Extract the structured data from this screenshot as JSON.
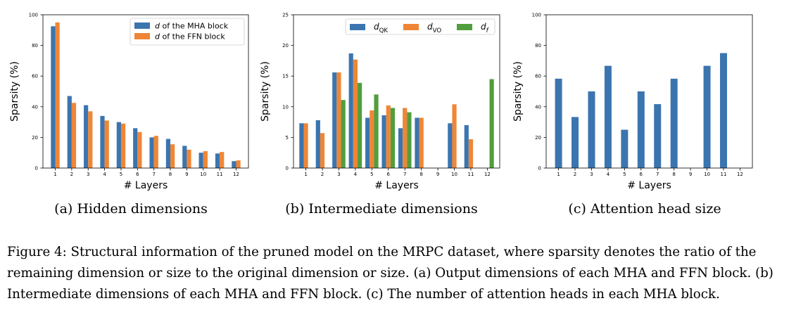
{
  "colors": {
    "blue": "#3b75af",
    "orange": "#ef8636",
    "green": "#519e3e"
  },
  "captions": {
    "a": "(a)  Hidden dimensions",
    "b": "(b)  Intermediate dimensions",
    "c": "(c)  Attention head size",
    "figure": "Figure 4:  Structural information of the pruned model on the MRPC dataset, where sparsity denotes the ratio of the remaining dimension or size to the original dimension or size. (a) Output dimensions of each MHA and FFN block. (b) Intermediate dimensions of each MHA and FFN block. (c) The number of attention heads in each MHA block."
  },
  "chart_data": [
    {
      "id": "a",
      "type": "bar",
      "xlabel": "# Layers",
      "ylabel": "Sparsity (%)",
      "ylim": [
        0,
        100
      ],
      "yticks": [
        0,
        20,
        40,
        60,
        80,
        100
      ],
      "categories": [
        "1",
        "2",
        "3",
        "4",
        "5",
        "6",
        "7",
        "8",
        "9",
        "10",
        "11",
        "12"
      ],
      "legend": "top-right",
      "grid": false,
      "series": [
        {
          "name": "d of the MHA block",
          "color": "blue",
          "values": [
            92.5,
            47,
            41,
            34,
            30,
            26,
            20,
            19,
            14.5,
            10,
            9.5,
            4.5
          ]
        },
        {
          "name": "d of the FFN block",
          "color": "orange",
          "values": [
            95,
            42.5,
            37,
            31,
            29,
            23.5,
            21,
            15.5,
            12,
            11,
            10.5,
            5
          ]
        }
      ]
    },
    {
      "id": "b",
      "type": "bar",
      "xlabel": "# Layers",
      "ylabel": "Sparsity (%)",
      "ylim": [
        0,
        25
      ],
      "yticks": [
        0,
        5,
        10,
        15,
        20,
        25
      ],
      "categories": [
        "1",
        "2",
        "3",
        "4",
        "5",
        "6",
        "7",
        "8",
        "9",
        "10",
        "11",
        "12"
      ],
      "legend": "top",
      "grid": false,
      "series": [
        {
          "name": "d_QK",
          "color": "blue",
          "values": [
            7.3,
            7.8,
            15.6,
            18.7,
            8.2,
            8.6,
            6.5,
            8.2,
            0,
            7.3,
            7.0,
            0
          ]
        },
        {
          "name": "d_VO",
          "color": "orange",
          "values": [
            7.3,
            5.7,
            15.6,
            17.7,
            9.4,
            10.2,
            9.8,
            8.2,
            0,
            10.4,
            4.7,
            0
          ]
        },
        {
          "name": "d_f",
          "color": "green",
          "values": [
            0,
            0,
            11.1,
            13.9,
            12.0,
            9.8,
            9.1,
            0,
            0,
            0,
            0,
            14.5
          ]
        }
      ]
    },
    {
      "id": "c",
      "type": "bar",
      "xlabel": "# Layers",
      "ylabel": "Sparsity (%)",
      "ylim": [
        0,
        100
      ],
      "yticks": [
        0,
        20,
        40,
        60,
        80,
        100
      ],
      "categories": [
        "1",
        "2",
        "3",
        "4",
        "5",
        "6",
        "7",
        "8",
        "9",
        "10",
        "11",
        "12"
      ],
      "legend": "none",
      "grid": false,
      "series": [
        {
          "name": "",
          "color": "blue",
          "values": [
            58.3,
            33.3,
            50,
            66.7,
            25,
            50,
            41.7,
            58.3,
            0,
            66.7,
            75,
            0
          ]
        }
      ]
    }
  ]
}
